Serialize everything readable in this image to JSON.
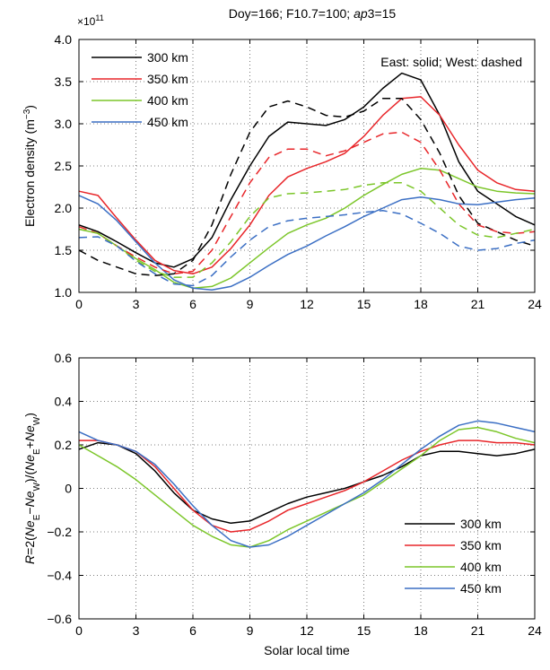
{
  "chart_data": [
    {
      "type": "line",
      "title": "Doy=166; F10.7=100; ap3=15",
      "title_parts": [
        "Doy=166; F10.7=100; ",
        "ap",
        "3=15"
      ],
      "ylabel_parts": [
        "Electron density (m",
        "−3",
        ")"
      ],
      "exponent_parts": [
        "×10",
        "11"
      ],
      "annotation": "East: solid; West: dashed",
      "xlim": [
        0,
        24
      ],
      "ylim": [
        1.0,
        4.0
      ],
      "xticks": [
        0,
        3,
        6,
        9,
        12,
        15,
        18,
        21,
        24
      ],
      "yticks": [
        1.0,
        1.5,
        2.0,
        2.5,
        3.0,
        3.5,
        4.0
      ],
      "ytick_labels": [
        "1.0",
        "1.5",
        "2.0",
        "2.5",
        "3.0",
        "3.5",
        "4.0"
      ],
      "grid": true,
      "legend_position": "top-left",
      "x": [
        0,
        1,
        2,
        3,
        4,
        5,
        6,
        7,
        8,
        9,
        10,
        11,
        12,
        13,
        14,
        15,
        16,
        17,
        18,
        19,
        20,
        21,
        22,
        23,
        24
      ],
      "series": [
        {
          "name": "300 km",
          "color": "#000000",
          "dash": false,
          "values": [
            1.8,
            1.72,
            1.6,
            1.47,
            1.35,
            1.3,
            1.4,
            1.65,
            2.1,
            2.5,
            2.85,
            3.02,
            3.0,
            2.98,
            3.05,
            3.2,
            3.42,
            3.6,
            3.52,
            3.1,
            2.55,
            2.2,
            2.05,
            1.9,
            1.8
          ]
        },
        {
          "name": "350 km",
          "color": "#e8262a",
          "dash": false,
          "values": [
            2.2,
            2.15,
            1.88,
            1.62,
            1.38,
            1.26,
            1.22,
            1.3,
            1.52,
            1.8,
            2.15,
            2.37,
            2.47,
            2.55,
            2.65,
            2.85,
            3.1,
            3.3,
            3.32,
            3.1,
            2.75,
            2.45,
            2.3,
            2.22,
            2.2
          ]
        },
        {
          "name": "400 km",
          "color": "#7cc62a",
          "dash": false,
          "values": [
            1.75,
            1.7,
            1.55,
            1.4,
            1.27,
            1.12,
            1.05,
            1.07,
            1.17,
            1.35,
            1.53,
            1.7,
            1.8,
            1.88,
            2.0,
            2.15,
            2.28,
            2.4,
            2.47,
            2.45,
            2.35,
            2.25,
            2.2,
            2.18,
            2.17
          ]
        },
        {
          "name": "450 km",
          "color": "#3b6fc4",
          "dash": false,
          "values": [
            2.15,
            2.05,
            1.85,
            1.6,
            1.35,
            1.15,
            1.05,
            1.03,
            1.07,
            1.18,
            1.32,
            1.45,
            1.55,
            1.67,
            1.78,
            1.9,
            2.0,
            2.1,
            2.13,
            2.1,
            2.05,
            2.04,
            2.07,
            2.1,
            2.12
          ]
        },
        {
          "name": "300 km West",
          "color": "#000000",
          "dash": true,
          "values": [
            1.5,
            1.38,
            1.3,
            1.22,
            1.2,
            1.22,
            1.38,
            1.8,
            2.4,
            2.9,
            3.2,
            3.27,
            3.2,
            3.1,
            3.08,
            3.15,
            3.3,
            3.3,
            3.05,
            2.65,
            2.15,
            1.82,
            1.72,
            1.62,
            1.55
          ]
        },
        {
          "name": "350 km West",
          "color": "#e8262a",
          "dash": true,
          "values": [
            1.78,
            1.7,
            1.55,
            1.42,
            1.3,
            1.22,
            1.25,
            1.5,
            1.9,
            2.3,
            2.6,
            2.7,
            2.7,
            2.62,
            2.68,
            2.78,
            2.88,
            2.9,
            2.78,
            2.45,
            2.05,
            1.8,
            1.72,
            1.7,
            1.72
          ]
        },
        {
          "name": "400 km West",
          "color": "#7cc62a",
          "dash": true,
          "values": [
            1.75,
            1.7,
            1.55,
            1.38,
            1.25,
            1.18,
            1.18,
            1.35,
            1.6,
            1.9,
            2.12,
            2.17,
            2.18,
            2.2,
            2.22,
            2.27,
            2.3,
            2.3,
            2.2,
            2.0,
            1.8,
            1.68,
            1.65,
            1.7,
            1.75
          ]
        },
        {
          "name": "450 km West",
          "color": "#3b6fc4",
          "dash": true,
          "values": [
            1.65,
            1.66,
            1.55,
            1.37,
            1.22,
            1.1,
            1.08,
            1.2,
            1.42,
            1.62,
            1.78,
            1.85,
            1.88,
            1.9,
            1.92,
            1.95,
            1.97,
            1.93,
            1.82,
            1.7,
            1.55,
            1.5,
            1.52,
            1.58,
            1.62
          ]
        }
      ],
      "legend": [
        "300 km",
        "350 km",
        "400 km",
        "450 km"
      ]
    },
    {
      "type": "line",
      "xlabel": "Solar local time",
      "ylabel_parts": [
        {
          "t": "R",
          "i": true
        },
        {
          "t": "=2("
        },
        {
          "t": "Ne",
          "i": true
        },
        {
          "t": "E",
          "sub": true
        },
        {
          "t": "−"
        },
        {
          "t": "Ne",
          "i": true
        },
        {
          "t": "W",
          "sub": true
        },
        {
          "t": ")/("
        },
        {
          "t": "Ne",
          "i": true
        },
        {
          "t": "E",
          "sub": true
        },
        {
          "t": "+"
        },
        {
          "t": "Ne",
          "i": true
        },
        {
          "t": "W",
          "sub": true
        },
        {
          "t": ")"
        }
      ],
      "xlim": [
        0,
        24
      ],
      "ylim": [
        -0.6,
        0.6
      ],
      "xticks": [
        0,
        3,
        6,
        9,
        12,
        15,
        18,
        21,
        24
      ],
      "yticks": [
        -0.6,
        -0.4,
        -0.2,
        0,
        0.2,
        0.4,
        0.6
      ],
      "ytick_labels": [
        "−0.6",
        "−0.4",
        "−0.2",
        "0",
        "0.2",
        "0.4",
        "0.6"
      ],
      "grid": true,
      "legend_position": "bottom-right",
      "x": [
        0,
        1,
        2,
        3,
        4,
        5,
        6,
        7,
        8,
        9,
        10,
        11,
        12,
        13,
        14,
        15,
        16,
        17,
        18,
        19,
        20,
        21,
        22,
        23,
        24
      ],
      "series": [
        {
          "name": "300 km",
          "color": "#000000",
          "values": [
            0.18,
            0.21,
            0.2,
            0.16,
            0.08,
            -0.02,
            -0.1,
            -0.14,
            -0.16,
            -0.15,
            -0.11,
            -0.07,
            -0.04,
            -0.02,
            0.0,
            0.03,
            0.06,
            0.1,
            0.15,
            0.17,
            0.17,
            0.16,
            0.15,
            0.16,
            0.18
          ]
        },
        {
          "name": "350 km",
          "color": "#e8262a",
          "values": [
            0.22,
            0.22,
            0.2,
            0.17,
            0.1,
            0.0,
            -0.1,
            -0.17,
            -0.2,
            -0.19,
            -0.15,
            -0.1,
            -0.07,
            -0.04,
            -0.01,
            0.03,
            0.08,
            0.13,
            0.17,
            0.2,
            0.22,
            0.22,
            0.21,
            0.21,
            0.2
          ]
        },
        {
          "name": "400 km",
          "color": "#7cc62a",
          "values": [
            0.2,
            0.15,
            0.1,
            0.04,
            -0.03,
            -0.1,
            -0.17,
            -0.22,
            -0.26,
            -0.27,
            -0.24,
            -0.19,
            -0.15,
            -0.11,
            -0.07,
            -0.03,
            0.03,
            0.09,
            0.15,
            0.22,
            0.27,
            0.28,
            0.26,
            0.23,
            0.21
          ]
        },
        {
          "name": "450 km",
          "color": "#3b6fc4",
          "values": [
            0.26,
            0.22,
            0.2,
            0.17,
            0.11,
            0.02,
            -0.08,
            -0.17,
            -0.24,
            -0.27,
            -0.26,
            -0.22,
            -0.17,
            -0.12,
            -0.07,
            -0.02,
            0.04,
            0.11,
            0.18,
            0.24,
            0.29,
            0.31,
            0.3,
            0.28,
            0.26
          ]
        }
      ],
      "legend": [
        "300 km",
        "350 km",
        "400 km",
        "450 km"
      ]
    }
  ]
}
